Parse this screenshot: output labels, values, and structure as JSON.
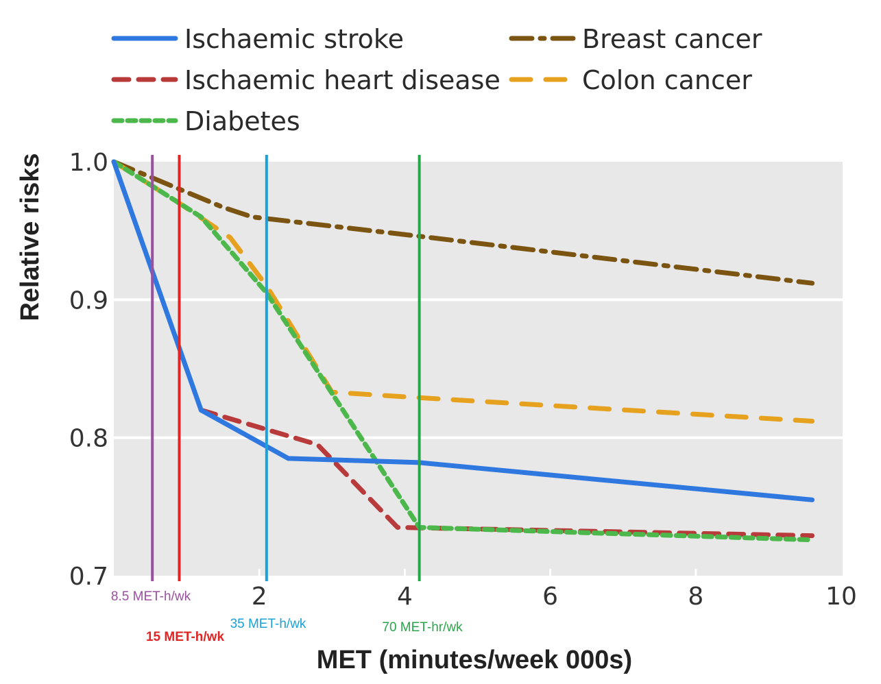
{
  "chart_data": {
    "type": "line",
    "title": "",
    "xlabel": "MET (minutes/week 000s)",
    "ylabel": "Relative risks",
    "xlim": [
      0,
      10
    ],
    "ylim": [
      0.7,
      1.0
    ],
    "x_ticks": [
      0,
      2,
      4,
      6,
      8,
      10
    ],
    "x_tick_labels": [
      "0",
      "2",
      "4",
      "6",
      "8",
      "10"
    ],
    "y_ticks": [
      0.7,
      0.8,
      0.9,
      1.0
    ],
    "y_tick_labels": [
      "0.7",
      "0.8",
      "0.9",
      "1.0"
    ],
    "grid": "horizontal",
    "background": "#e8e8e8",
    "legend_position": "top",
    "series": [
      {
        "name": "Ischaemic stroke",
        "style": "solid",
        "color": "#2f78e0",
        "points": [
          [
            0,
            1.0
          ],
          [
            1.2,
            0.82
          ],
          [
            2.4,
            0.785
          ],
          [
            4.2,
            0.782
          ],
          [
            9.6,
            0.755
          ]
        ]
      },
      {
        "name": "Ischaemic heart disease",
        "style": "dashed",
        "color": "#b83a3a",
        "points": [
          [
            1.2,
            0.82
          ],
          [
            2.8,
            0.795
          ],
          [
            3.9,
            0.735
          ],
          [
            9.6,
            0.729
          ]
        ]
      },
      {
        "name": "Diabetes",
        "style": "dotted",
        "color": "#4cb84c",
        "points": [
          [
            0,
            1.0
          ],
          [
            0.9,
            0.97
          ],
          [
            1.2,
            0.96
          ],
          [
            2.1,
            0.905
          ],
          [
            4.2,
            0.735
          ],
          [
            9.6,
            0.726
          ]
        ]
      },
      {
        "name": "Breast cancer",
        "style": "dashdot",
        "color": "#7a5410",
        "points": [
          [
            0,
            1.0
          ],
          [
            1.0,
            0.978
          ],
          [
            1.5,
            0.967
          ],
          [
            1.9,
            0.96
          ],
          [
            4.2,
            0.946
          ],
          [
            9.6,
            0.912
          ]
        ]
      },
      {
        "name": "Colon cancer",
        "style": "longdash",
        "color": "#e6a21e",
        "points": [
          [
            0,
            1.0
          ],
          [
            0.9,
            0.97
          ],
          [
            1.6,
            0.945
          ],
          [
            2.1,
            0.91
          ],
          [
            3.0,
            0.833
          ],
          [
            4.2,
            0.829
          ],
          [
            9.6,
            0.812
          ]
        ]
      }
    ],
    "annotations": [
      {
        "label": "8.5 MET-h/wk",
        "x": 0.53,
        "color": "#9b4fa0"
      },
      {
        "label": "15 MET-h/wk",
        "x": 0.9,
        "color": "#e02525"
      },
      {
        "label": "35 MET-h/wk",
        "x": 2.1,
        "color": "#1ba0d8"
      },
      {
        "label": "70 MET-hr/wk",
        "x": 4.2,
        "color": "#2aa64a"
      }
    ]
  }
}
